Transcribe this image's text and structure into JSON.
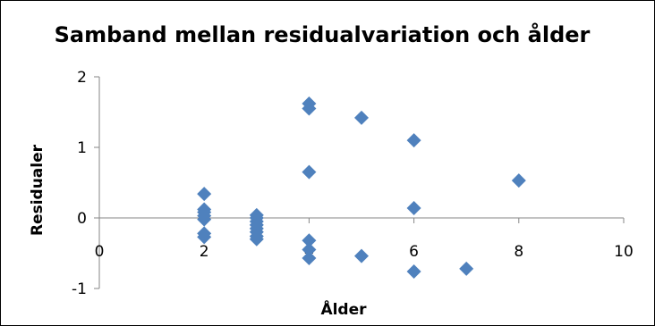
{
  "chart_data": {
    "type": "scatter",
    "title": "Samband mellan residualvariation och ålder",
    "xlabel": "Ålder",
    "ylabel": "Residualer",
    "xlim": [
      0,
      10
    ],
    "ylim": [
      -1,
      2
    ],
    "x_ticks": [
      "0",
      "2",
      "4",
      "6",
      "8",
      "10"
    ],
    "y_ticks": [
      "-1",
      "0",
      "1",
      "2"
    ],
    "grid": false,
    "legend": "none",
    "marker_color": "#4F81BD",
    "marker": "diamond",
    "series": [
      {
        "points": [
          {
            "x": 2,
            "y": 0.34
          },
          {
            "x": 2,
            "y": 0.12
          },
          {
            "x": 2,
            "y": 0.08
          },
          {
            "x": 2,
            "y": 0.03
          },
          {
            "x": 2,
            "y": -0.02
          },
          {
            "x": 2,
            "y": -0.22
          },
          {
            "x": 2,
            "y": -0.27
          },
          {
            "x": 3,
            "y": 0.04
          },
          {
            "x": 3,
            "y": 0.0
          },
          {
            "x": 3,
            "y": -0.05
          },
          {
            "x": 3,
            "y": -0.1
          },
          {
            "x": 3,
            "y": -0.15
          },
          {
            "x": 3,
            "y": -0.2
          },
          {
            "x": 3,
            "y": -0.26
          },
          {
            "x": 3,
            "y": -0.3
          },
          {
            "x": 4,
            "y": 1.62
          },
          {
            "x": 4,
            "y": 1.55
          },
          {
            "x": 4,
            "y": 0.65
          },
          {
            "x": 4,
            "y": -0.32
          },
          {
            "x": 4,
            "y": -0.45
          },
          {
            "x": 4,
            "y": -0.57
          },
          {
            "x": 5,
            "y": 1.42
          },
          {
            "x": 5,
            "y": -0.54
          },
          {
            "x": 6,
            "y": 1.1
          },
          {
            "x": 6,
            "y": 0.14
          },
          {
            "x": 6,
            "y": -0.76
          },
          {
            "x": 7,
            "y": -0.72
          },
          {
            "x": 8,
            "y": 0.53
          }
        ]
      }
    ]
  }
}
